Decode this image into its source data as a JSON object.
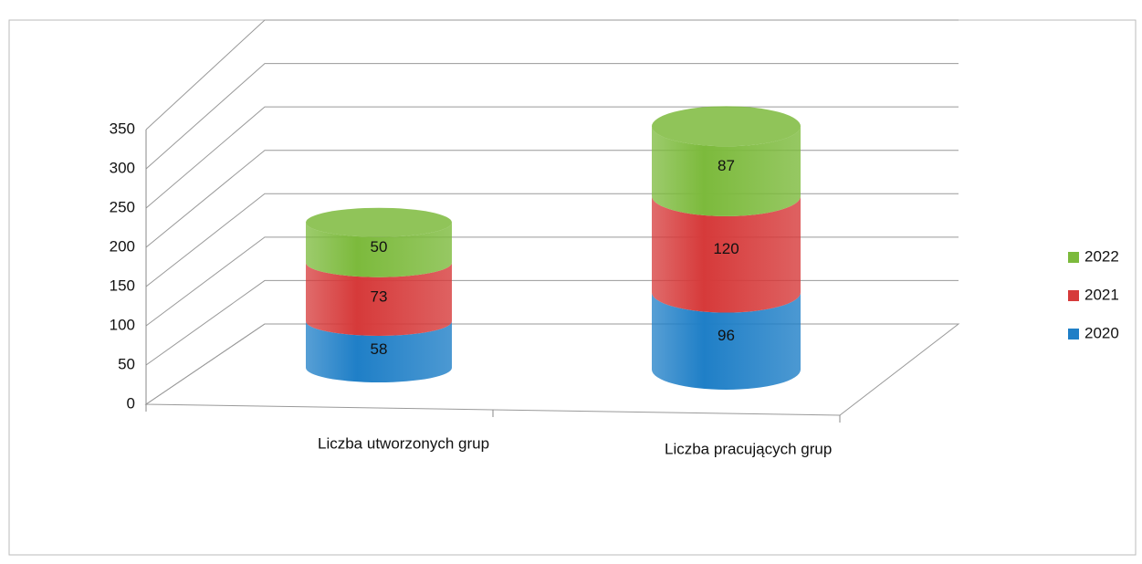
{
  "chart_data": {
    "type": "bar3d_stacked_cylinder",
    "categories": [
      "Liczba utworzonych grup",
      "Liczba pracujących grup"
    ],
    "series": [
      {
        "name": "2020",
        "color": "#1f7fc7",
        "values": [
          58,
          96
        ]
      },
      {
        "name": "2021",
        "color": "#d63a3a",
        "values": [
          73,
          120
        ]
      },
      {
        "name": "2022",
        "color": "#7cba3c",
        "values": [
          50,
          87
        ]
      }
    ],
    "ylim": [
      0,
      350
    ],
    "yticks": [
      0,
      50,
      100,
      150,
      200,
      250,
      300,
      350
    ],
    "grid": true,
    "legend": "right"
  }
}
